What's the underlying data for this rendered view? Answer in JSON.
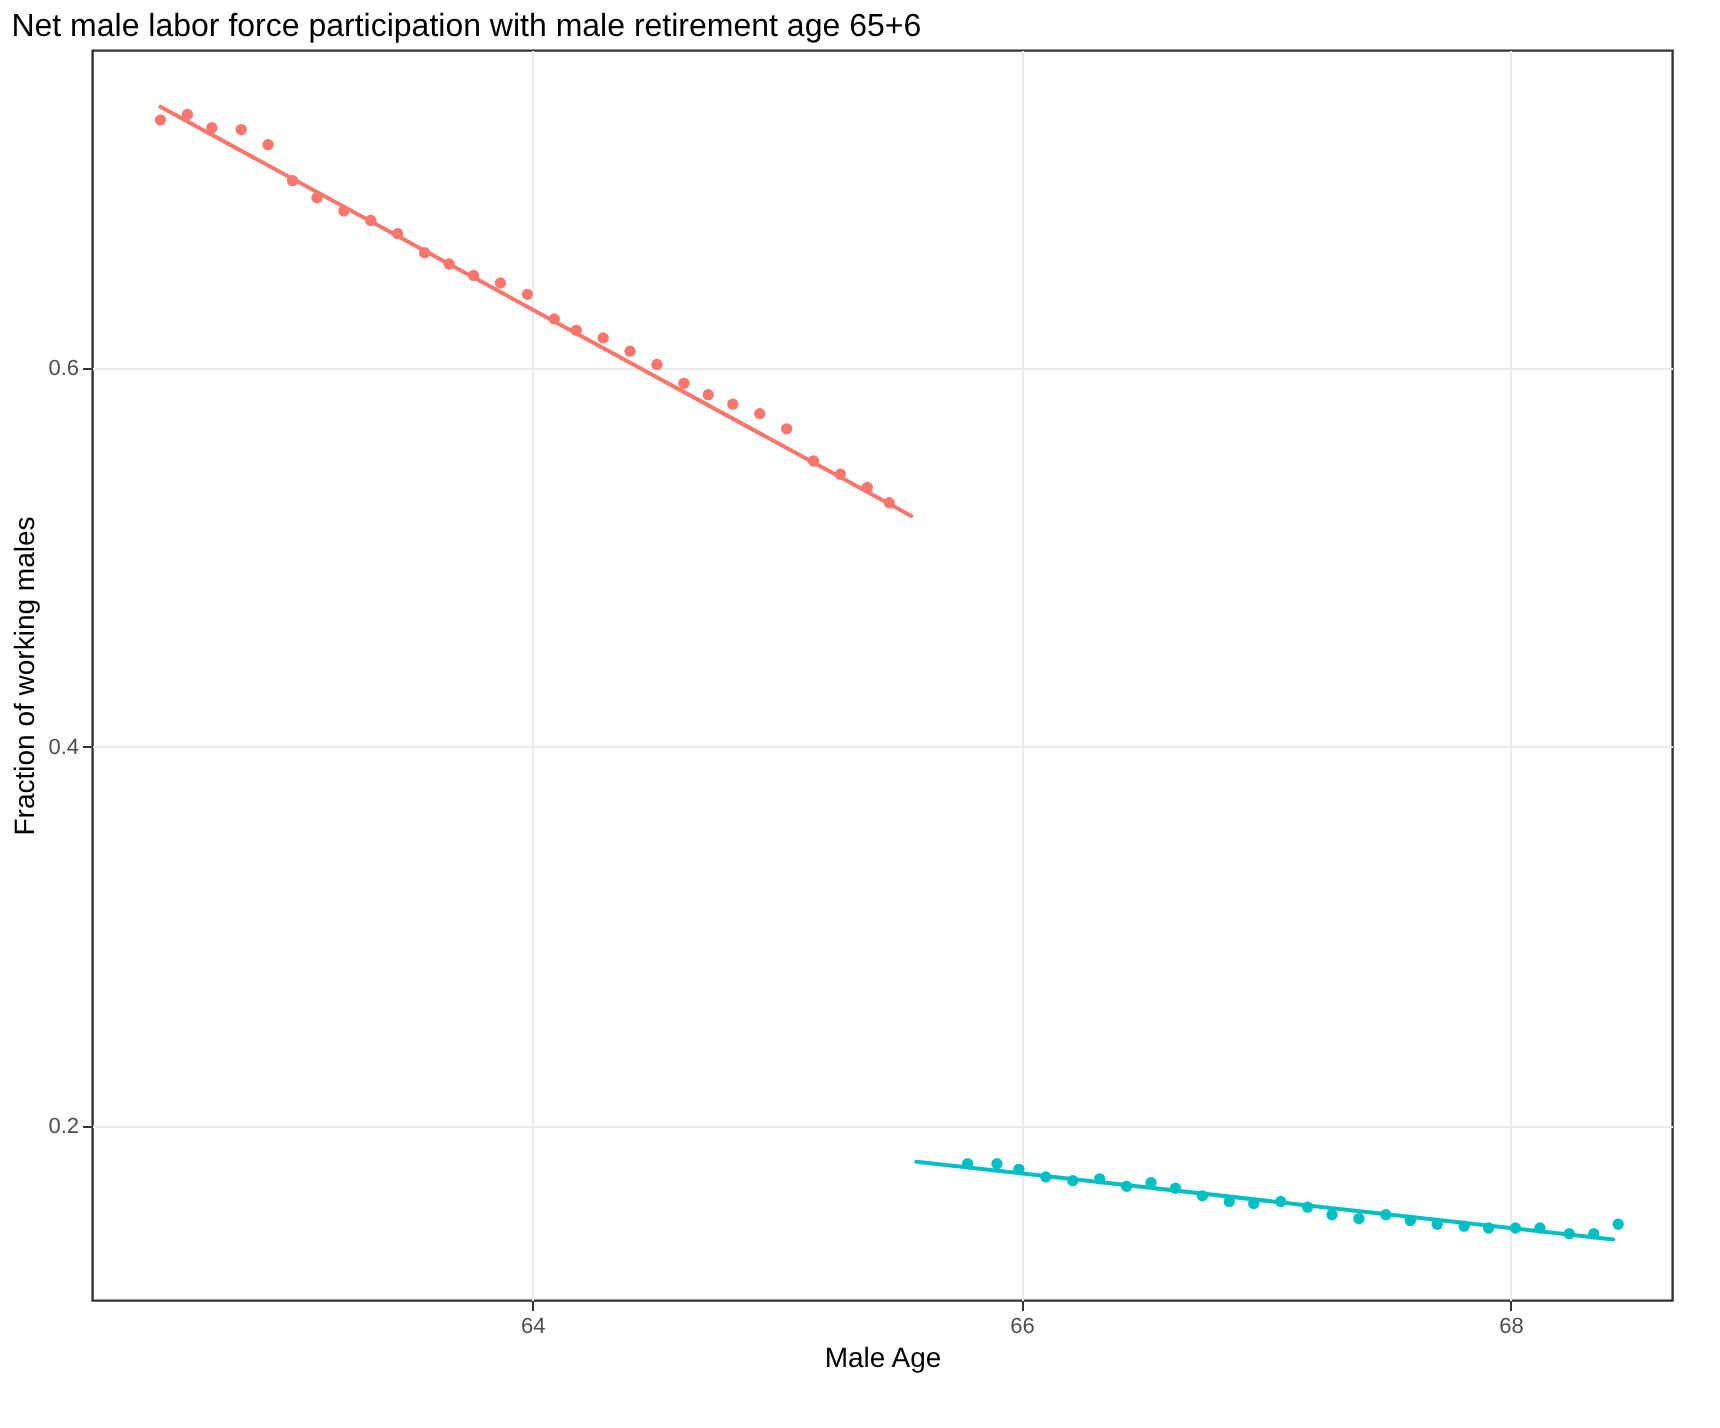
{
  "chart_data": {
    "type": "scatter",
    "title": "Net male labor force participation with male retirement age 65+6",
    "xlabel": "Male Age",
    "ylabel": "Fraction of working males",
    "xlim": [
      62.2,
      68.66
    ],
    "ylim": [
      0.108,
      0.768
    ],
    "xticks": [
      64,
      66,
      68
    ],
    "yticks": [
      0.2,
      0.4,
      0.6
    ],
    "grid": true,
    "marker": "circle",
    "line_style": "solid",
    "series": [
      {
        "color": "#f8766d",
        "x": [
          62.48,
          62.59,
          62.69,
          62.81,
          62.92,
          63.02,
          63.12,
          63.23,
          63.34,
          63.45,
          63.56,
          63.66,
          63.76,
          63.87,
          63.98,
          64.09,
          64.18,
          64.29,
          64.4,
          64.51,
          64.62,
          64.72,
          64.82,
          64.93,
          65.04,
          65.15,
          65.26,
          65.37,
          65.46
        ],
        "values": [
          0.731,
          0.734,
          0.727,
          0.726,
          0.718,
          0.699,
          0.69,
          0.683,
          0.678,
          0.671,
          0.661,
          0.655,
          0.649,
          0.645,
          0.639,
          0.626,
          0.62,
          0.616,
          0.609,
          0.602,
          0.592,
          0.586,
          0.581,
          0.576,
          0.568,
          0.551,
          0.544,
          0.537,
          0.529
        ]
      },
      {
        "type": "line",
        "marker": "none",
        "color": "#f8766d",
        "x": [
          62.48,
          65.55
        ],
        "values": [
          0.738,
          0.522
        ]
      },
      {
        "color": "#00bfc4",
        "x": [
          65.78,
          65.9,
          65.99,
          66.1,
          66.21,
          66.32,
          66.43,
          66.53,
          66.63,
          66.74,
          66.85,
          66.95,
          67.06,
          67.17,
          67.27,
          67.38,
          67.49,
          67.59,
          67.7,
          67.81,
          67.91,
          68.02,
          68.12,
          68.24,
          68.34,
          68.44
        ],
        "values": [
          0.18,
          0.18,
          0.177,
          0.173,
          0.171,
          0.172,
          0.168,
          0.17,
          0.167,
          0.163,
          0.16,
          0.159,
          0.16,
          0.157,
          0.153,
          0.151,
          0.153,
          0.15,
          0.148,
          0.147,
          0.146,
          0.146,
          0.146,
          0.143,
          0.143,
          0.148
        ]
      },
      {
        "type": "line",
        "marker": "none",
        "color": "#00bfc4",
        "x": [
          65.57,
          68.42
        ],
        "values": [
          0.181,
          0.14
        ]
      }
    ]
  }
}
